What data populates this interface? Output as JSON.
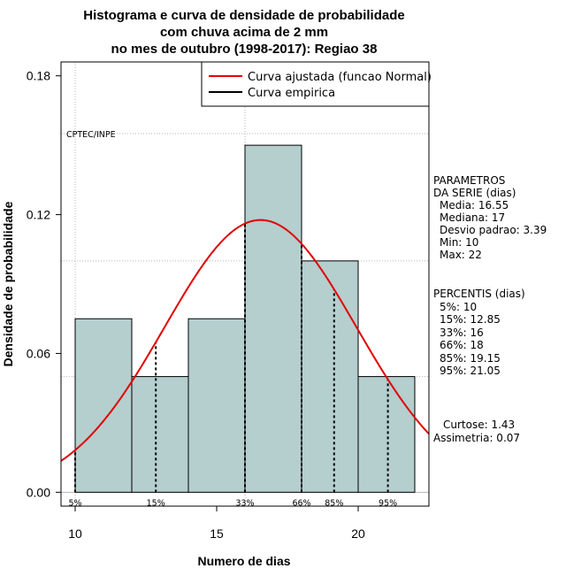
{
  "chart_data": {
    "type": "bar",
    "title": [
      "Histograma e curva de densidade de probabilidade",
      "com chuva acima de 2 mm",
      "no mes de outubro (1998-2017): Regiao 38"
    ],
    "xlabel": "Numero de dias",
    "ylabel": "Densidade de probabilidade",
    "xlim": [
      9.5,
      22.5
    ],
    "ylim": [
      -0.006,
      0.186
    ],
    "x_ticks": [
      10,
      15,
      20
    ],
    "y_ticks": [
      0.0,
      0.06,
      0.12,
      0.18
    ],
    "x_tick_labels": [
      "10",
      "15",
      "20"
    ],
    "y_tick_labels": [
      "0.00",
      "0.06",
      "0.12",
      "0.18"
    ],
    "hgrid": [
      0.05,
      0.1,
      0.155
    ],
    "vgrid": [
      10,
      16
    ],
    "bars": [
      {
        "x0": 10,
        "x1": 12,
        "density": 0.075
      },
      {
        "x0": 12,
        "x1": 14,
        "density": 0.05
      },
      {
        "x0": 14,
        "x1": 16,
        "density": 0.075
      },
      {
        "x0": 16,
        "x1": 18,
        "density": 0.15
      },
      {
        "x0": 18,
        "x1": 20,
        "density": 0.1
      },
      {
        "x0": 20,
        "x1": 22,
        "density": 0.05
      }
    ],
    "normal_curve": {
      "mean": 16.55,
      "sd": 3.39,
      "color": "#e00000"
    },
    "percentile_lines": [
      {
        "label": "5%",
        "x": 10
      },
      {
        "label": "15%",
        "x": 12.85
      },
      {
        "label": "33%",
        "x": 16
      },
      {
        "label": "66%",
        "x": 18
      },
      {
        "label": "85%",
        "x": 19.15
      },
      {
        "label": "95%",
        "x": 21.05
      }
    ],
    "legend": {
      "position": "top-right",
      "entries": [
        {
          "label": "Curva ajustada (funcao Normal)",
          "color": "#e00000"
        },
        {
          "label": "Curva empirica",
          "color": "#000000"
        }
      ]
    },
    "bar_color": "#b5cece",
    "watermark": "CPTEC/INPE"
  },
  "stats": {
    "params_title": [
      "PARAMETROS",
      "DA SERIE (dias)"
    ],
    "params": [
      "Media: 16.55",
      "Mediana: 17",
      "Desvio padrao: 3.39",
      "Min: 10",
      "Max: 22"
    ],
    "percentis_title": "PERCENTIS (dias)",
    "percentis": [
      "5%: 10",
      "15%: 12.85",
      "33%: 16",
      "66%: 18",
      "85%: 19.15",
      "95%: 21.05"
    ],
    "curtose": "Curtose: 1.43",
    "assimetria": "Assimetria: 0.07"
  }
}
